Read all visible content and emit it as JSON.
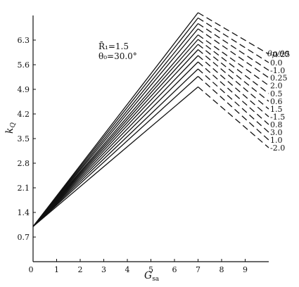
{
  "chart_data": {
    "type": "line",
    "xlabel": "G",
    "xlabel_sub": "sa",
    "ylabel": "k",
    "ylabel_sub": "Q",
    "xlim": [
      0,
      10
    ],
    "ylim": [
      0,
      7.0
    ],
    "x_ticks": [
      0,
      1,
      2,
      3,
      4,
      5,
      6,
      7,
      8,
      9
    ],
    "y_ticks": [
      0.7,
      1.4,
      2.1,
      2.8,
      3.5,
      4.2,
      4.9,
      5.6,
      6.3
    ],
    "grid": false,
    "annotations": [
      "R̄₁=1.5",
      "θ₀=30.0°"
    ],
    "legend_title": "θp/θ0",
    "legend_labels": [
      "-0.25",
      "0.0",
      "-1.0",
      "0.25",
      "2.0",
      "0.5",
      "0.6",
      "1.5",
      "-1.5",
      "0.8",
      "3.0",
      "1.0",
      "-2.0"
    ],
    "series": [
      {
        "name": "-0.25",
        "x": [
          0,
          7
        ],
        "y": [
          1.0,
          7.08
        ],
        "dash_end": [
          10,
          5.9
        ]
      },
      {
        "name": "0.0",
        "x": [
          0,
          7
        ],
        "y": [
          1.0,
          6.93
        ],
        "dash_end": [
          10,
          5.66
        ]
      },
      {
        "name": "-1.0",
        "x": [
          0,
          7
        ],
        "y": [
          1.0,
          6.77
        ],
        "dash_end": [
          10,
          5.44
        ]
      },
      {
        "name": "0.25",
        "x": [
          0,
          7
        ],
        "y": [
          1.0,
          6.62
        ],
        "dash_end": [
          10,
          5.23
        ]
      },
      {
        "name": "2.0",
        "x": [
          0,
          7
        ],
        "y": [
          1.0,
          6.45
        ],
        "dash_end": [
          10,
          5.01
        ]
      },
      {
        "name": "0.5",
        "x": [
          0,
          7
        ],
        "y": [
          1.0,
          6.32
        ],
        "dash_end": [
          10,
          4.78
        ]
      },
      {
        "name": "0.6",
        "x": [
          0,
          7
        ],
        "y": [
          1.0,
          6.18
        ],
        "dash_end": [
          10,
          4.56
        ]
      },
      {
        "name": "1.5",
        "x": [
          0,
          7
        ],
        "y": [
          1.0,
          6.03
        ],
        "dash_end": [
          10,
          4.34
        ]
      },
      {
        "name": "-1.5",
        "x": [
          0,
          7
        ],
        "y": [
          1.0,
          5.86
        ],
        "dash_end": [
          10,
          4.12
        ]
      },
      {
        "name": "0.8",
        "x": [
          0,
          7
        ],
        "y": [
          1.0,
          5.68
        ],
        "dash_end": [
          10,
          3.9
        ]
      },
      {
        "name": "3.0",
        "x": [
          0,
          7
        ],
        "y": [
          1.0,
          5.48
        ],
        "dash_end": [
          10,
          3.68
        ]
      },
      {
        "name": "1.0",
        "x": [
          0,
          7
        ],
        "y": [
          1.0,
          5.27
        ],
        "dash_end": [
          10,
          3.46
        ]
      },
      {
        "name": "-2.0",
        "x": [
          0,
          7
        ],
        "y": [
          1.0,
          4.97
        ],
        "dash_end": [
          10,
          3.24
        ]
      }
    ]
  }
}
